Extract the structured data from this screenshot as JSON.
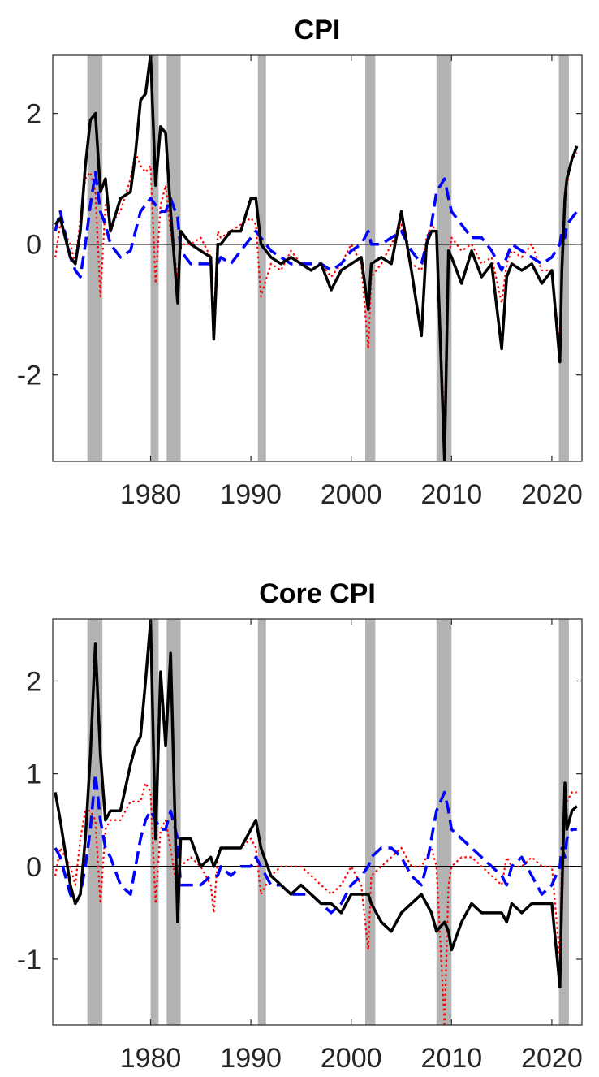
{
  "chart_data": [
    {
      "type": "line",
      "title": "CPI",
      "x": [
        1970.5,
        1971,
        1972,
        1972.5,
        1973,
        1973.5,
        1974,
        1974.5,
        1975,
        1975.5,
        1976,
        1977,
        1978,
        1978.5,
        1979,
        1979.5,
        1980,
        1980.5,
        1981,
        1981.5,
        1982,
        1982.7,
        1983,
        1984,
        1985,
        1986,
        1986.3,
        1986.7,
        1987,
        1988,
        1989,
        1990,
        1990.5,
        1991,
        1992,
        1993,
        1994,
        1995,
        1996,
        1997,
        1998,
        1999,
        2000,
        2001,
        2001.7,
        2002,
        2003,
        2004,
        2005,
        2006,
        2007,
        2007.5,
        2008,
        2008.5,
        2009.3,
        2009.7,
        2010,
        2011,
        2012,
        2013,
        2014,
        2015,
        2015.5,
        2016,
        2017,
        2018,
        2019,
        2020,
        2020.8,
        2021,
        2021.3,
        2021.5,
        2022,
        2022.5
      ],
      "series": [
        {
          "color": "#ff0000",
          "dash": "dotted",
          "values": [
            -0.2,
            0.3,
            0.0,
            -0.3,
            0.4,
            1.0,
            1.1,
            0.8,
            -0.8,
            0.6,
            0.3,
            0.5,
            1.0,
            1.4,
            1.2,
            1.1,
            1.2,
            -0.6,
            0.6,
            0.9,
            0.2,
            -0.5,
            0.0,
            0.0,
            0.1,
            -0.2,
            -1.2,
            0.2,
            0.1,
            0.2,
            0.3,
            0.4,
            0.3,
            -0.8,
            -0.3,
            -0.4,
            -0.1,
            -0.3,
            -0.4,
            -0.3,
            -0.5,
            -0.3,
            0.0,
            -0.3,
            -1.6,
            -0.5,
            -0.3,
            0.0,
            0.3,
            -0.3,
            -0.4,
            0.1,
            0.3,
            0.2,
            -2.9,
            -0.3,
            0.1,
            -0.1,
            0.0,
            -0.3,
            -0.2,
            -0.9,
            -0.3,
            -0.1,
            -0.2,
            0.0,
            -0.4,
            -0.4,
            -1.6,
            -0.1,
            0.6,
            0.9,
            1.3,
            1.4
          ]
        },
        {
          "color": "#0000ff",
          "dash": "dashed",
          "values": [
            0.2,
            0.5,
            -0.2,
            -0.4,
            -0.5,
            0.0,
            0.6,
            1.1,
            0.5,
            0.3,
            0.0,
            -0.2,
            -0.1,
            0.2,
            0.5,
            0.6,
            0.7,
            0.6,
            0.5,
            0.5,
            0.7,
            0.4,
            -0.1,
            -0.3,
            -0.3,
            -0.3,
            -0.3,
            -0.3,
            -0.2,
            -0.3,
            -0.1,
            0.1,
            0.2,
            0.1,
            -0.1,
            -0.2,
            -0.3,
            -0.3,
            -0.3,
            -0.3,
            -0.4,
            -0.3,
            -0.1,
            0.0,
            0.2,
            0.0,
            0.0,
            0.1,
            0.2,
            -0.1,
            -0.3,
            0.0,
            0.3,
            0.8,
            1.0,
            0.7,
            0.5,
            0.3,
            0.1,
            0.1,
            -0.1,
            -0.4,
            -0.2,
            0.0,
            -0.1,
            -0.2,
            -0.3,
            -0.2,
            0.0,
            0.2,
            0.1,
            0.3,
            0.4,
            0.5
          ]
        },
        {
          "color": "#000000",
          "dash": "solid",
          "values": [
            0.3,
            0.4,
            -0.2,
            -0.3,
            0.2,
            1.2,
            1.9,
            2.0,
            0.8,
            1.0,
            0.2,
            0.7,
            0.8,
            1.4,
            2.2,
            2.3,
            2.9,
            0.9,
            1.8,
            1.7,
            0.5,
            -0.9,
            0.2,
            0.0,
            -0.1,
            -0.2,
            -1.45,
            0.0,
            0.0,
            0.2,
            0.2,
            0.7,
            0.7,
            0.0,
            -0.2,
            -0.3,
            -0.2,
            -0.3,
            -0.4,
            -0.3,
            -0.7,
            -0.4,
            -0.3,
            -0.2,
            -1.0,
            -0.3,
            -0.2,
            -0.3,
            0.5,
            -0.4,
            -1.4,
            0.0,
            0.2,
            0.2,
            -3.3,
            -0.1,
            -0.2,
            -0.6,
            -0.1,
            -0.5,
            -0.3,
            -1.6,
            -0.5,
            -0.3,
            -0.4,
            -0.3,
            -0.6,
            -0.4,
            -1.8,
            -0.4,
            0.7,
            1.0,
            1.3,
            1.5
          ]
        }
      ],
      "recessions": [
        [
          1973.7,
          1975.2
        ],
        [
          1980.0,
          1980.8
        ],
        [
          1981.6,
          1983.0
        ],
        [
          1990.7,
          1991.5
        ],
        [
          2001.4,
          2002.4
        ],
        [
          2008.5,
          2010.0
        ],
        [
          2020.7,
          2021.7
        ]
      ],
      "recession_color": "#b3b3b3",
      "xlim": [
        1970.25,
        2023.0
      ],
      "xticks": [
        1980,
        1990,
        2000,
        2010,
        2020
      ],
      "ylim": [
        -3.32,
        2.89
      ],
      "yticks": [
        -2,
        0,
        2
      ],
      "zero_line": true
    },
    {
      "type": "line",
      "title": "Core CPI",
      "x": [
        1970.5,
        1971,
        1972,
        1972.5,
        1973,
        1973.5,
        1974,
        1974.5,
        1975,
        1975.5,
        1976,
        1977,
        1978,
        1978.5,
        1979,
        1979.5,
        1980,
        1980.5,
        1981,
        1981.5,
        1982,
        1982.7,
        1983,
        1984,
        1985,
        1986,
        1986.3,
        1986.7,
        1987,
        1988,
        1989,
        1990,
        1990.5,
        1991,
        1992,
        1993,
        1994,
        1995,
        1996,
        1997,
        1998,
        1999,
        2000,
        2001,
        2001.7,
        2002,
        2003,
        2004,
        2005,
        2006,
        2007,
        2007.5,
        2008,
        2008.5,
        2009.3,
        2009.7,
        2010,
        2011,
        2012,
        2013,
        2014,
        2015,
        2015.5,
        2016,
        2017,
        2018,
        2019,
        2020,
        2020.8,
        2021,
        2021.3,
        2021.5,
        2022,
        2022.5
      ],
      "series": [
        {
          "color": "#ff0000",
          "dash": "dotted",
          "values": [
            -0.1,
            0.2,
            0.0,
            -0.2,
            0.3,
            0.6,
            0.6,
            0.5,
            -0.4,
            0.4,
            0.5,
            0.5,
            0.7,
            0.7,
            0.7,
            0.9,
            0.8,
            -0.4,
            0.4,
            0.5,
            0.2,
            -0.3,
            0.0,
            0.1,
            0.0,
            -0.2,
            -0.5,
            0.1,
            0.2,
            0.2,
            0.2,
            0.3,
            0.2,
            -0.3,
            -0.1,
            0.0,
            0.0,
            0.0,
            -0.1,
            -0.2,
            -0.3,
            -0.2,
            0.0,
            -0.2,
            -0.9,
            -0.1,
            0.0,
            0.1,
            0.2,
            0.0,
            0.0,
            0.1,
            0.2,
            0.0,
            -1.7,
            -0.2,
            0.0,
            0.1,
            0.1,
            0.0,
            -0.1,
            -0.2,
            0.1,
            0.0,
            0.0,
            0.1,
            0.0,
            0.0,
            -1.0,
            0.1,
            0.6,
            0.7,
            0.8,
            0.8
          ]
        },
        {
          "color": "#0000ff",
          "dash": "dashed",
          "values": [
            0.2,
            0.1,
            -0.3,
            -0.4,
            -0.3,
            0.0,
            0.4,
            1.0,
            0.5,
            0.2,
            0.1,
            -0.2,
            -0.3,
            0.0,
            0.3,
            0.5,
            0.6,
            0.5,
            0.4,
            0.4,
            0.6,
            0.3,
            -0.2,
            -0.2,
            -0.2,
            -0.1,
            -0.1,
            -0.1,
            0.0,
            -0.1,
            0.0,
            0.0,
            0.1,
            0.0,
            -0.2,
            -0.2,
            -0.3,
            -0.3,
            -0.3,
            -0.4,
            -0.5,
            -0.4,
            -0.2,
            -0.1,
            0.0,
            0.1,
            0.2,
            0.2,
            0.1,
            -0.1,
            -0.2,
            0.0,
            0.3,
            0.6,
            0.8,
            0.6,
            0.4,
            0.3,
            0.2,
            0.1,
            0.0,
            -0.1,
            -0.2,
            0.0,
            0.1,
            -0.1,
            -0.3,
            -0.2,
            0.0,
            0.2,
            0.1,
            0.3,
            0.4,
            0.4
          ]
        },
        {
          "color": "#000000",
          "dash": "solid",
          "values": [
            0.8,
            0.5,
            -0.2,
            -0.4,
            -0.3,
            0.3,
            1.2,
            2.4,
            1.2,
            0.5,
            0.6,
            0.6,
            1.1,
            1.3,
            1.4,
            2.0,
            2.65,
            0.3,
            2.1,
            1.3,
            2.3,
            -0.6,
            0.3,
            0.3,
            0.0,
            0.1,
            0.0,
            0.1,
            0.2,
            0.2,
            0.2,
            0.4,
            0.5,
            0.2,
            -0.1,
            -0.2,
            -0.3,
            -0.2,
            -0.3,
            -0.4,
            -0.4,
            -0.5,
            -0.3,
            -0.3,
            -0.3,
            -0.4,
            -0.6,
            -0.7,
            -0.5,
            -0.4,
            -0.3,
            -0.4,
            -0.5,
            -0.7,
            -0.6,
            -0.7,
            -0.9,
            -0.6,
            -0.4,
            -0.5,
            -0.5,
            -0.5,
            -0.6,
            -0.4,
            -0.5,
            -0.4,
            -0.4,
            -0.4,
            -1.3,
            -0.3,
            0.9,
            0.4,
            0.6,
            0.65
          ]
        }
      ],
      "recessions": [
        [
          1973.7,
          1975.2
        ],
        [
          1980.0,
          1980.8
        ],
        [
          1981.6,
          1983.0
        ],
        [
          1990.7,
          1991.5
        ],
        [
          2001.4,
          2002.4
        ],
        [
          2008.5,
          2010.0
        ],
        [
          2020.7,
          2021.7
        ]
      ],
      "recession_color": "#b3b3b3",
      "xlim": [
        1970.25,
        2023.0
      ],
      "xticks": [
        1980,
        1990,
        2000,
        2010,
        2020
      ],
      "ylim": [
        -1.71,
        2.67
      ],
      "yticks": [
        -1,
        0,
        1,
        2
      ],
      "zero_line": true
    }
  ]
}
